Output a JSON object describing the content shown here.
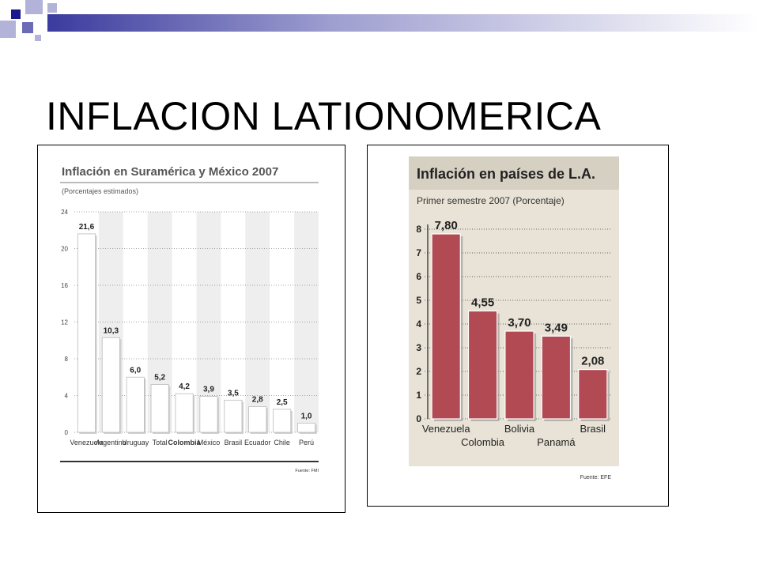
{
  "slide": {
    "title": "INFLACION LATIONOMERICA",
    "accent_colors": [
      "#1a1a8c",
      "#6b6bb8",
      "#b3b3d9"
    ]
  },
  "chart_data": [
    {
      "type": "bar",
      "title": "Inflación en Suramérica y México 2007",
      "subtitle": "(Porcentajes estimados)",
      "categories": [
        "Venezuela",
        "Argentina",
        "Uruguay",
        "Total",
        "Colombia",
        "México",
        "Brasil",
        "Ecuador",
        "Chile",
        "Perú"
      ],
      "values": [
        21.6,
        10.3,
        6.0,
        5.2,
        4.2,
        3.9,
        3.5,
        2.8,
        2.5,
        1.0
      ],
      "value_labels": [
        "21,6",
        "10,3",
        "6,0",
        "5,2",
        "4,2",
        "3,9",
        "3,5",
        "2,8",
        "2,5",
        "1,0"
      ],
      "ylim": [
        0,
        24
      ],
      "yticks": [
        0,
        4,
        8,
        12,
        16,
        20,
        24
      ],
      "grid": true,
      "highlight_category": "Colombia",
      "source": "Fuente: FMI",
      "bar_color": "#ffffff",
      "background_stripe_color": "#eeeeee"
    },
    {
      "type": "bar",
      "title": "Inflación en países de L.A.",
      "subtitle": "Primer semestre 2007 (Porcentaje)",
      "categories": [
        "Venezuela",
        "Colombia",
        "Bolivia",
        "Panamá",
        "Brasil"
      ],
      "values": [
        7.8,
        4.55,
        3.7,
        3.49,
        2.08
      ],
      "value_labels": [
        "7,80",
        "4,55",
        "3,70",
        "3,49",
        "2,08"
      ],
      "ylim": [
        0,
        8
      ],
      "yticks": [
        0,
        1,
        2,
        3,
        4,
        5,
        6,
        7,
        8
      ],
      "grid": true,
      "source": "Fuente: EFE",
      "bar_color": "#b24a53",
      "background_color": "#e8e3d6"
    }
  ]
}
